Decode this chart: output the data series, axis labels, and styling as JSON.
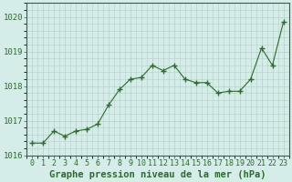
{
  "x": [
    0,
    1,
    2,
    3,
    4,
    5,
    6,
    7,
    8,
    9,
    10,
    11,
    12,
    13,
    14,
    15,
    16,
    17,
    18,
    19,
    20,
    21,
    22,
    23
  ],
  "y": [
    1016.35,
    1016.35,
    1016.7,
    1016.55,
    1016.7,
    1016.75,
    1016.9,
    1017.45,
    1017.9,
    1018.2,
    1018.25,
    1018.6,
    1018.45,
    1018.6,
    1018.2,
    1018.1,
    1018.1,
    1017.8,
    1017.85,
    1017.85,
    1018.2,
    1019.1,
    1018.6,
    1019.85
  ],
  "line_color": "#2d6a2d",
  "marker_color": "#2d6a2d",
  "bg_color": "#d4ede8",
  "grid_color": "#b8cfc8",
  "title": "Graphe pression niveau de la mer (hPa)",
  "ylim_min": 1016.0,
  "ylim_max": 1020.4,
  "yticks": [
    1016,
    1017,
    1018,
    1019,
    1020
  ],
  "title_fontsize": 7.5,
  "tick_fontsize": 6.5
}
